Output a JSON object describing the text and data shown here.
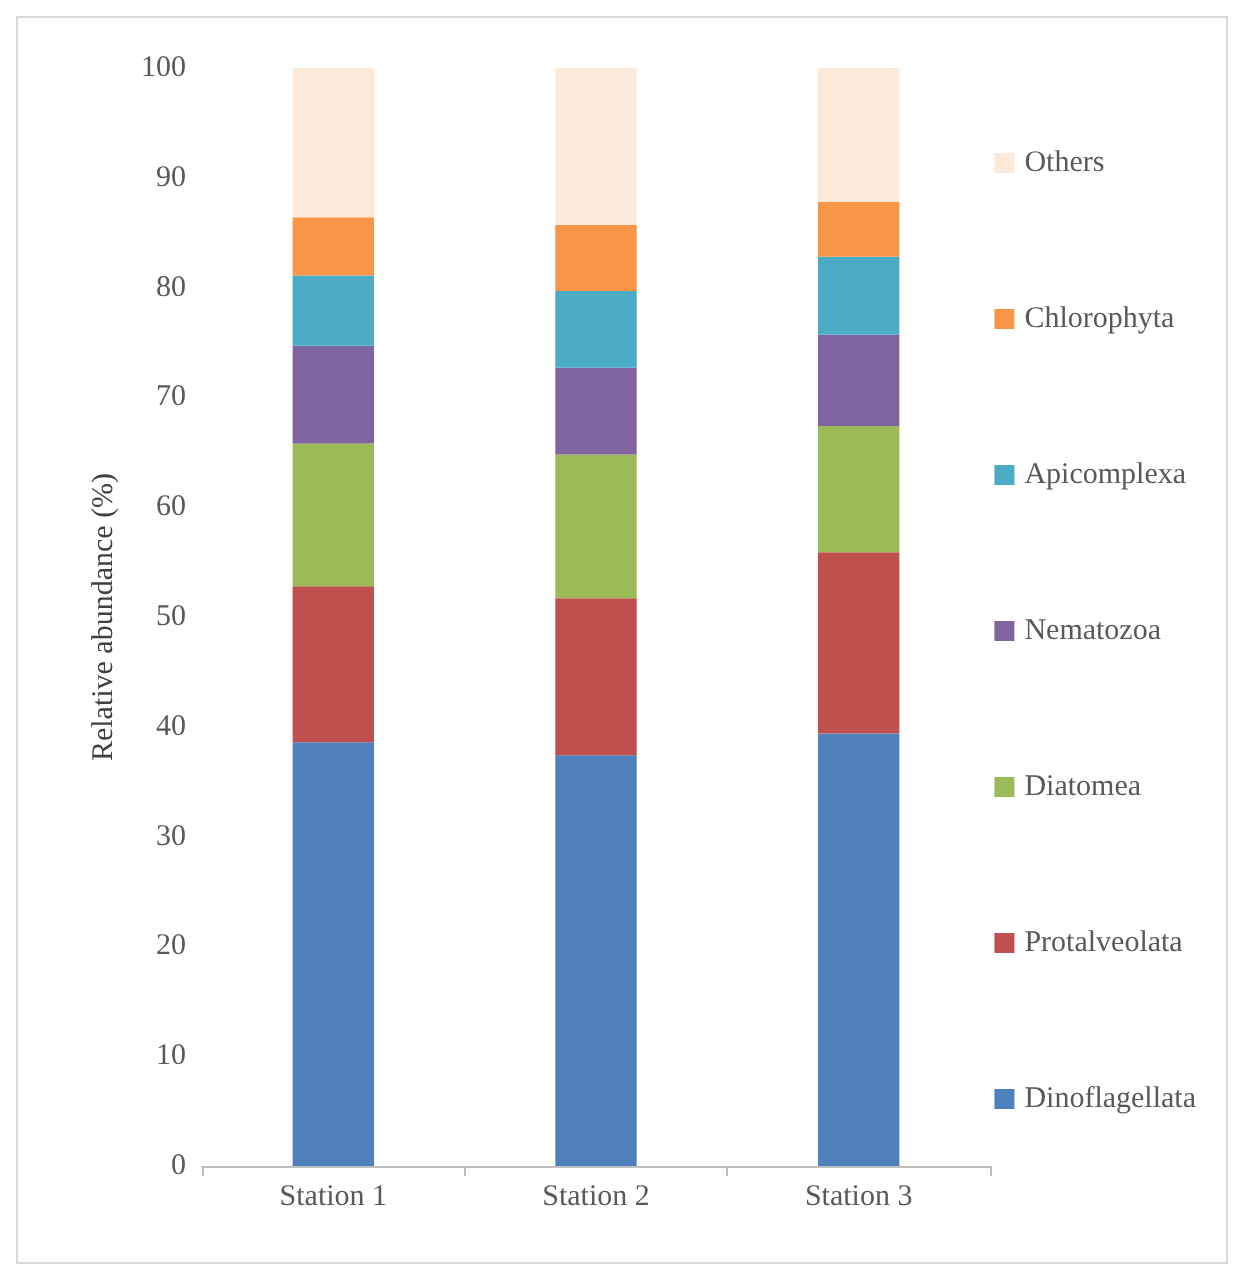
{
  "chart_data": {
    "type": "bar",
    "stacked": true,
    "ylabel": "Relative abundance (%)",
    "categories": [
      "Station 1",
      "Station 2",
      "Station 3"
    ],
    "ylim": [
      0,
      100
    ],
    "yticks": [
      0,
      10,
      20,
      30,
      40,
      50,
      60,
      70,
      80,
      90,
      100
    ],
    "grid": false,
    "legend": "right",
    "series": [
      {
        "name": "Dinoflagellata",
        "color": "#4f81bd",
        "values": [
          38.6,
          37.4,
          39.4
        ]
      },
      {
        "name": "Protalveolata",
        "color": "#c0504d",
        "values": [
          14.2,
          14.3,
          16.5
        ]
      },
      {
        "name": "Diatomea",
        "color": "#9bbb59",
        "values": [
          13.0,
          13.1,
          11.5
        ]
      },
      {
        "name": "Nematozoa",
        "color": "#8064a2",
        "values": [
          8.9,
          7.9,
          8.3
        ]
      },
      {
        "name": "Apicomplexa",
        "color": "#4bacc6",
        "values": [
          6.4,
          7.0,
          7.1
        ]
      },
      {
        "name": "Chlorophyta",
        "color": "#f79646",
        "values": [
          5.3,
          6.0,
          5.0
        ]
      },
      {
        "name": "Others",
        "color": "#fde9d9",
        "values": [
          13.6,
          14.3,
          12.2
        ]
      }
    ]
  }
}
